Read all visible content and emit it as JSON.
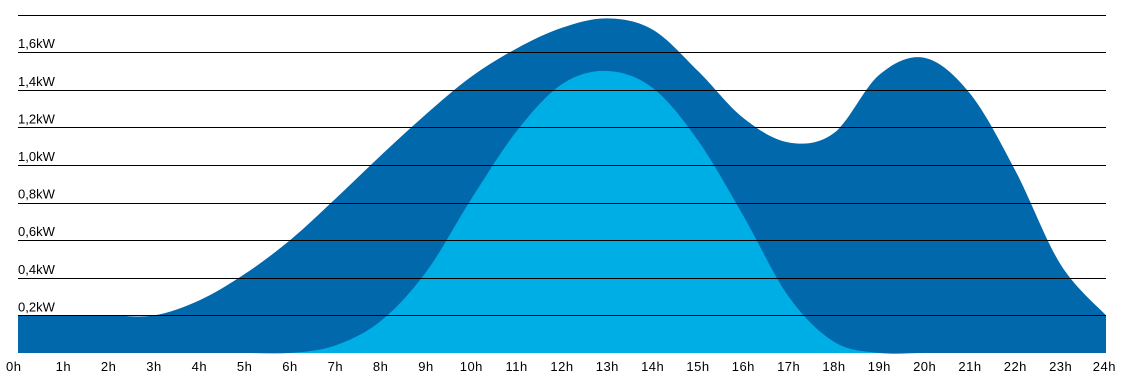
{
  "chart_data": {
    "type": "area",
    "title": "",
    "xlabel": "",
    "ylabel": "",
    "x": [
      0,
      1,
      2,
      3,
      4,
      5,
      6,
      7,
      8,
      9,
      10,
      11,
      12,
      13,
      14,
      15,
      16,
      17,
      18,
      19,
      20,
      21,
      22,
      23,
      24
    ],
    "x_tick_labels": [
      "0h",
      "1h",
      "2h",
      "3h",
      "4h",
      "5h",
      "6h",
      "7h",
      "8h",
      "9h",
      "10h",
      "11h",
      "12h",
      "13h",
      "14h",
      "15h",
      "16h",
      "17h",
      "18h",
      "19h",
      "20h",
      "21h",
      "22h",
      "23h",
      "24h"
    ],
    "y_tick_values": [
      0.2,
      0.4,
      0.6,
      0.8,
      1.0,
      1.2,
      1.4,
      1.6
    ],
    "y_tick_labels": [
      "0,2kW",
      "0,4kW",
      "0,6kW",
      "0,8kW",
      "1,0kW",
      "1,2kW",
      "1,4kW",
      "1,6kW"
    ],
    "ylim": [
      0,
      1.8
    ],
    "grid": true,
    "series": [
      {
        "color": "#0068ab",
        "values": [
          0.2,
          0.2,
          0.2,
          0.2,
          0.28,
          0.42,
          0.6,
          0.82,
          1.05,
          1.27,
          1.47,
          1.62,
          1.73,
          1.78,
          1.72,
          1.5,
          1.25,
          1.12,
          1.17,
          1.48,
          1.57,
          1.38,
          0.97,
          0.47,
          0.2
        ]
      },
      {
        "color": "#00aee6",
        "values": [
          0,
          0,
          0,
          0,
          0,
          0,
          0,
          0.04,
          0.17,
          0.43,
          0.82,
          1.18,
          1.43,
          1.5,
          1.41,
          1.13,
          0.73,
          0.3,
          0.06,
          0,
          0,
          0,
          0,
          0,
          0
        ]
      }
    ]
  }
}
